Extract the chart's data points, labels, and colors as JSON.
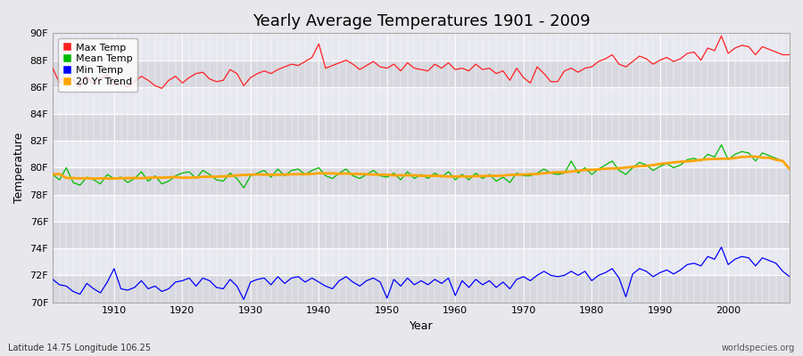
{
  "title": "Yearly Average Temperatures 1901 - 2009",
  "xlabel": "Year",
  "ylabel": "Temperature",
  "lat_lon_label": "Latitude 14.75 Longitude 106.25",
  "source_label": "worldspecies.org",
  "years": [
    1901,
    1902,
    1903,
    1904,
    1905,
    1906,
    1907,
    1908,
    1909,
    1910,
    1911,
    1912,
    1913,
    1914,
    1915,
    1916,
    1917,
    1918,
    1919,
    1920,
    1921,
    1922,
    1923,
    1924,
    1925,
    1926,
    1927,
    1928,
    1929,
    1930,
    1931,
    1932,
    1933,
    1934,
    1935,
    1936,
    1937,
    1938,
    1939,
    1940,
    1941,
    1942,
    1943,
    1944,
    1945,
    1946,
    1947,
    1948,
    1949,
    1950,
    1951,
    1952,
    1953,
    1954,
    1955,
    1956,
    1957,
    1958,
    1959,
    1960,
    1961,
    1962,
    1963,
    1964,
    1965,
    1966,
    1967,
    1968,
    1969,
    1970,
    1971,
    1972,
    1973,
    1974,
    1975,
    1976,
    1977,
    1978,
    1979,
    1980,
    1981,
    1982,
    1983,
    1984,
    1985,
    1986,
    1987,
    1988,
    1989,
    1990,
    1991,
    1992,
    1993,
    1994,
    1995,
    1996,
    1997,
    1998,
    1999,
    2000,
    2001,
    2002,
    2003,
    2004,
    2005,
    2006,
    2007,
    2008,
    2009
  ],
  "max_temp": [
    87.4,
    86.3,
    87.2,
    86.5,
    86.0,
    86.8,
    86.2,
    86.6,
    86.9,
    86.1,
    86.3,
    86.0,
    86.4,
    86.8,
    86.5,
    86.1,
    85.9,
    86.5,
    86.8,
    86.3,
    86.7,
    87.0,
    87.1,
    86.6,
    86.4,
    86.5,
    87.3,
    87.0,
    86.1,
    86.7,
    87.0,
    87.2,
    87.0,
    87.3,
    87.5,
    87.7,
    87.6,
    87.9,
    88.2,
    89.2,
    87.4,
    87.6,
    87.8,
    88.0,
    87.7,
    87.3,
    87.6,
    87.9,
    87.5,
    87.4,
    87.7,
    87.2,
    87.8,
    87.4,
    87.3,
    87.2,
    87.7,
    87.4,
    87.8,
    87.3,
    87.4,
    87.2,
    87.7,
    87.3,
    87.4,
    87.0,
    87.2,
    86.5,
    87.4,
    86.7,
    86.3,
    87.5,
    87.0,
    86.4,
    86.4,
    87.2,
    87.4,
    87.1,
    87.4,
    87.5,
    87.9,
    88.1,
    88.4,
    87.7,
    87.5,
    87.9,
    88.3,
    88.1,
    87.7,
    88.0,
    88.2,
    87.9,
    88.1,
    88.5,
    88.6,
    88.0,
    88.9,
    88.7,
    89.8,
    88.5,
    88.9,
    89.1,
    89.0,
    88.4,
    89.0,
    88.8,
    88.6,
    88.4,
    88.4
  ],
  "mean_temp": [
    79.5,
    79.1,
    80.0,
    78.9,
    78.7,
    79.3,
    79.1,
    78.8,
    79.5,
    79.2,
    79.3,
    78.9,
    79.2,
    79.7,
    79.0,
    79.4,
    78.8,
    79.0,
    79.4,
    79.6,
    79.7,
    79.2,
    79.8,
    79.5,
    79.1,
    79.0,
    79.6,
    79.2,
    78.5,
    79.4,
    79.6,
    79.8,
    79.3,
    79.9,
    79.4,
    79.8,
    79.9,
    79.5,
    79.8,
    80.0,
    79.4,
    79.2,
    79.6,
    79.9,
    79.4,
    79.2,
    79.5,
    79.8,
    79.4,
    79.3,
    79.6,
    79.1,
    79.7,
    79.2,
    79.5,
    79.2,
    79.6,
    79.3,
    79.7,
    79.1,
    79.5,
    79.1,
    79.6,
    79.2,
    79.5,
    79.0,
    79.3,
    78.9,
    79.6,
    79.4,
    79.4,
    79.6,
    79.9,
    79.6,
    79.5,
    79.6,
    80.5,
    79.6,
    80.0,
    79.5,
    79.9,
    80.2,
    80.5,
    79.8,
    79.5,
    80.0,
    80.4,
    80.2,
    79.8,
    80.1,
    80.3,
    80.0,
    80.2,
    80.6,
    80.7,
    80.5,
    81.0,
    80.8,
    81.7,
    80.6,
    81.0,
    81.2,
    81.1,
    80.5,
    81.1,
    80.9,
    80.7,
    80.5,
    79.9
  ],
  "min_temp": [
    71.7,
    71.3,
    71.2,
    70.8,
    70.6,
    71.4,
    71.0,
    70.7,
    71.5,
    72.5,
    71.0,
    70.9,
    71.1,
    71.6,
    71.0,
    71.2,
    70.8,
    71.0,
    71.5,
    71.6,
    71.8,
    71.2,
    71.8,
    71.6,
    71.1,
    71.0,
    71.7,
    71.2,
    70.2,
    71.5,
    71.7,
    71.8,
    71.3,
    71.9,
    71.4,
    71.8,
    71.9,
    71.5,
    71.8,
    71.5,
    71.2,
    71.0,
    71.6,
    71.9,
    71.5,
    71.2,
    71.6,
    71.8,
    71.5,
    70.3,
    71.7,
    71.2,
    71.8,
    71.3,
    71.6,
    71.3,
    71.7,
    71.4,
    71.8,
    70.5,
    71.6,
    71.1,
    71.7,
    71.3,
    71.6,
    71.1,
    71.5,
    71.0,
    71.7,
    71.9,
    71.6,
    72.0,
    72.3,
    72.0,
    71.9,
    72.0,
    72.3,
    72.0,
    72.3,
    71.6,
    72.0,
    72.2,
    72.5,
    71.8,
    70.4,
    72.1,
    72.5,
    72.3,
    71.9,
    72.2,
    72.4,
    72.1,
    72.4,
    72.8,
    72.9,
    72.7,
    73.4,
    73.2,
    74.1,
    72.8,
    73.2,
    73.4,
    73.3,
    72.7,
    73.3,
    73.1,
    72.9,
    72.3,
    71.9
  ],
  "bg_color": "#e8e8ec",
  "plot_bg_color": "#e0e0e8",
  "max_color": "#ff2020",
  "mean_color": "#00bb00",
  "min_color": "#0000ff",
  "trend_color": "#ffa500",
  "ylim": [
    70,
    90
  ],
  "yticks": [
    70,
    72,
    74,
    76,
    78,
    80,
    82,
    84,
    86,
    88,
    90
  ],
  "ytick_labels": [
    "70F",
    "72F",
    "74F",
    "76F",
    "78F",
    "80F",
    "82F",
    "84F",
    "86F",
    "88F",
    "90F"
  ],
  "xlim": [
    1901,
    2009
  ],
  "xticks": [
    1910,
    1920,
    1930,
    1940,
    1950,
    1960,
    1970,
    1980,
    1990,
    2000
  ],
  "title_fontsize": 13,
  "axis_label_fontsize": 9,
  "tick_fontsize": 8,
  "legend_fontsize": 8,
  "linewidth": 0.9,
  "trend_linewidth": 2.0,
  "band_colors": [
    "#d8d8e0",
    "#e8e8f0"
  ]
}
